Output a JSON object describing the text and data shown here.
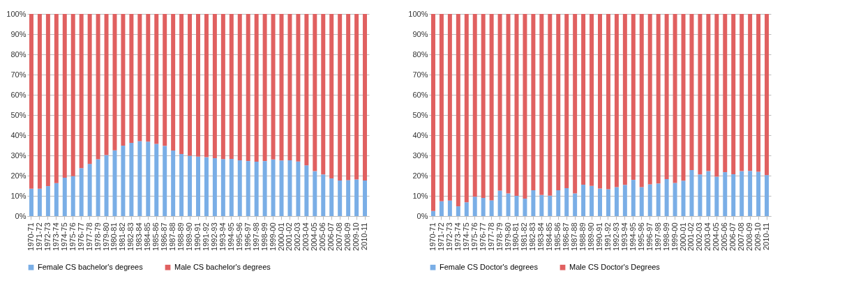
{
  "chart_data": [
    {
      "type": "bar",
      "stacked": true,
      "categories": [
        "1970-71",
        "1971-72",
        "1972-73",
        "1973-74",
        "1974-75",
        "1975-76",
        "1976-77",
        "1977-78",
        "1978-79",
        "1979-80",
        "1980-81",
        "1981-82",
        "1982-83",
        "1983-84",
        "1984-85",
        "1985-86",
        "1986-87",
        "1987-88",
        "1988-89",
        "1989-90",
        "1990-91",
        "1991-92",
        "1992-93",
        "1993-94",
        "1994-95",
        "1995-96",
        "1996-97",
        "1997-98",
        "1998-99",
        "1999-00",
        "2000-01",
        "2001-02",
        "2002-03",
        "2003-04",
        "2004-05",
        "2005-06",
        "2006-07",
        "2007-08",
        "2008-09",
        "2009-10",
        "2010-11"
      ],
      "series": [
        {
          "name": "Female CS bachelor's degrees",
          "color": "#7aaee6",
          "values": [
            13.5,
            13.5,
            14.8,
            16.3,
            19,
            19.7,
            23.7,
            25.8,
            28.1,
            30.2,
            32.5,
            34.8,
            36.2,
            37.1,
            36.8,
            35.7,
            34.7,
            32.4,
            30.7,
            29.8,
            29.4,
            29.1,
            28.6,
            28.2,
            28.3,
            27.6,
            27.2,
            26.9,
            27.2,
            28,
            27.5,
            27.6,
            27,
            25.1,
            22.2,
            20.6,
            18.6,
            17.6,
            17.8,
            18.1,
            17.6
          ]
        },
        {
          "name": "Male CS bachelor's degrees",
          "color": "#e06060",
          "values": [
            86.5,
            86.5,
            85.2,
            83.7,
            81,
            80.3,
            76.3,
            74.2,
            71.9,
            69.8,
            67.5,
            65.2,
            63.8,
            62.9,
            63.2,
            64.3,
            65.3,
            67.6,
            69.3,
            70.2,
            70.6,
            70.9,
            71.4,
            71.8,
            71.7,
            72.4,
            72.8,
            73.1,
            72.8,
            72,
            72.5,
            72.4,
            73,
            74.9,
            77.8,
            79.4,
            81.4,
            82.4,
            82.2,
            81.9,
            82.4
          ]
        }
      ],
      "ylim": [
        0,
        100
      ],
      "yticks": [
        {
          "value": 0,
          "label": "0%"
        },
        {
          "value": 10,
          "label": "10%"
        },
        {
          "value": 20,
          "label": "20%"
        },
        {
          "value": 30,
          "label": "30%"
        },
        {
          "value": 40,
          "label": "40%"
        },
        {
          "value": 50,
          "label": "50%"
        },
        {
          "value": 60,
          "label": "60%"
        },
        {
          "value": 70,
          "label": "70%"
        },
        {
          "value": 80,
          "label": "80%"
        },
        {
          "value": 90,
          "label": "90%"
        },
        {
          "value": 100,
          "label": "100%"
        }
      ],
      "grid": "y",
      "legend": "bottom"
    },
    {
      "type": "bar",
      "stacked": true,
      "categories": [
        "1970-71",
        "1971-72",
        "1972-73",
        "1973-74",
        "1974-75",
        "1975-76",
        "1976-77",
        "1977-78",
        "1978-79",
        "1979-80",
        "1980-81",
        "1981-82",
        "1982-83",
        "1983-84",
        "1984-85",
        "1985-86",
        "1986-87",
        "1987-88",
        "1988-89",
        "1989-90",
        "1990-91",
        "1991-92",
        "1992-93",
        "1993-94",
        "1994-95",
        "1995-96",
        "1996-97",
        "1997-98",
        "1998-99",
        "1999-00",
        "2000-01",
        "2001-02",
        "2002-03",
        "2003-04",
        "2004-05",
        "2005-06",
        "2006-07",
        "2007-08",
        "2008-09",
        "2009-10",
        "2010-11"
      ],
      "series": [
        {
          "name": "Female CS Doctor's degrees",
          "color": "#7aaee6",
          "values": [
            2.5,
            7.3,
            7.7,
            4.8,
            6.8,
            9.6,
            9,
            7.8,
            12.6,
            11.2,
            10,
            8.6,
            12.8,
            10.4,
            10.1,
            12.8,
            13.8,
            11.2,
            15.5,
            14.9,
            13.6,
            13.3,
            14.3,
            15.4,
            17.9,
            14.3,
            15.7,
            16.1,
            18.3,
            16.4,
            17.5,
            22.8,
            20.6,
            22.2,
            19.5,
            21.7,
            20.7,
            22.2,
            22.3,
            21.9,
            20.3
          ]
        },
        {
          "name": "Male CS Doctor's Degrees",
          "color": "#e06060",
          "values": [
            97.5,
            92.7,
            92.3,
            95.2,
            93.2,
            90.4,
            91,
            92.2,
            87.4,
            88.8,
            90,
            91.4,
            87.2,
            89.6,
            89.9,
            87.2,
            86.2,
            88.8,
            84.5,
            85.1,
            86.4,
            86.7,
            85.7,
            84.6,
            82.1,
            85.7,
            84.3,
            83.9,
            81.7,
            83.6,
            82.5,
            77.2,
            79.4,
            77.8,
            80.5,
            78.3,
            79.3,
            77.8,
            77.7,
            78.1,
            79.7
          ]
        }
      ],
      "ylim": [
        0,
        100
      ],
      "yticks": [
        {
          "value": 0,
          "label": "0%"
        },
        {
          "value": 10,
          "label": "10%"
        },
        {
          "value": 20,
          "label": "20%"
        },
        {
          "value": 30,
          "label": "30%"
        },
        {
          "value": 40,
          "label": "40%"
        },
        {
          "value": 50,
          "label": "50%"
        },
        {
          "value": 60,
          "label": "60%"
        },
        {
          "value": 70,
          "label": "70%"
        },
        {
          "value": 80,
          "label": "80%"
        },
        {
          "value": 90,
          "label": "90%"
        },
        {
          "value": 100,
          "label": "100%"
        }
      ],
      "grid": "y",
      "legend": "bottom"
    }
  ]
}
